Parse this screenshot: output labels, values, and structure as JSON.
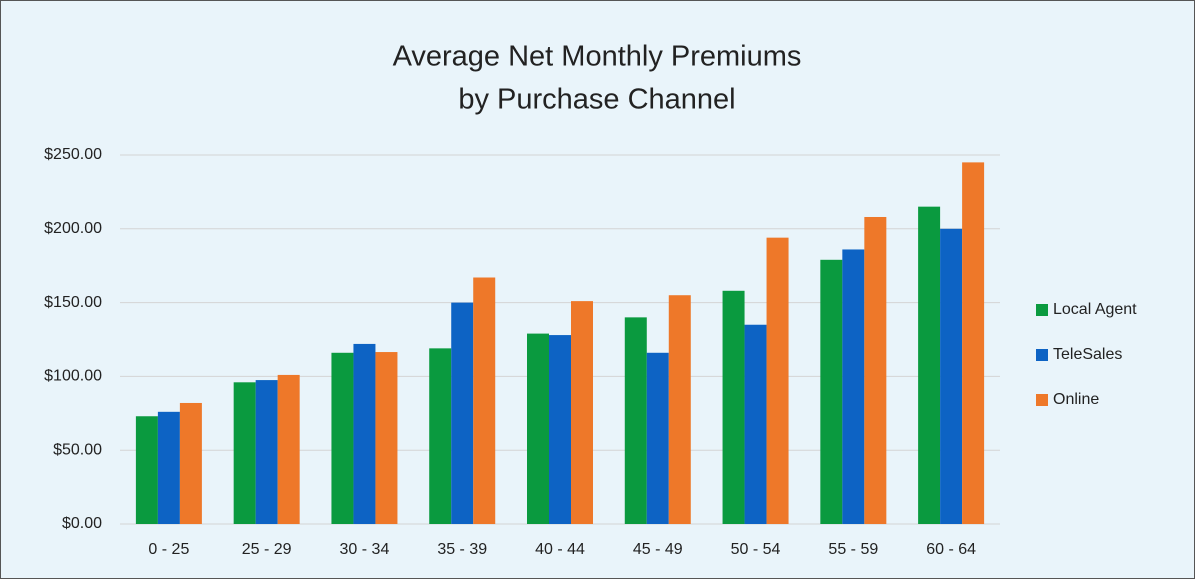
{
  "chart_data": {
    "type": "bar",
    "title": [
      "Average Net Monthly Premiums",
      "by Purchase Channel"
    ],
    "categories": [
      "0 - 25",
      "25 - 29",
      "30 - 34",
      "35 - 39",
      "40 - 44",
      "45 - 49",
      "50 - 54",
      "55 - 59",
      "60 - 64"
    ],
    "series": [
      {
        "name": "Local Agent",
        "color": "#0a9a3f",
        "values": [
          73,
          96,
          116,
          119,
          129,
          140,
          158,
          179,
          215
        ]
      },
      {
        "name": "TeleSales",
        "color": "#0d63c4",
        "values": [
          76,
          97.5,
          122,
          150,
          128,
          116,
          135,
          186,
          200
        ]
      },
      {
        "name": "Online",
        "color": "#ee7829",
        "values": [
          82,
          101,
          116.5,
          167,
          151,
          155,
          194,
          208,
          245
        ]
      }
    ],
    "ylim": [
      0,
      250
    ],
    "yticks": [
      {
        "value": 0,
        "label": "$0.00"
      },
      {
        "value": 50,
        "label": "$50.00"
      },
      {
        "value": 100,
        "label": "$100.00"
      },
      {
        "value": 150,
        "label": "$150.00"
      },
      {
        "value": 200,
        "label": "$200.00"
      },
      {
        "value": 250,
        "label": "$250.00"
      }
    ],
    "grid": true,
    "legend": "right"
  }
}
